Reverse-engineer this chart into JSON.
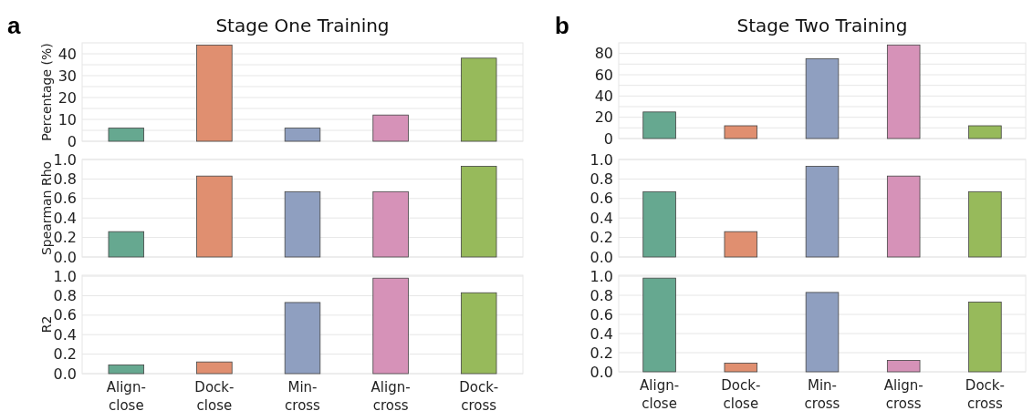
{
  "chart_data": [
    {
      "type": "bar",
      "title": "Stage One Training",
      "annotations": [
        "a"
      ],
      "ylabel": "Percentage (%)",
      "categories": [
        null,
        null,
        null,
        null,
        null
      ],
      "values": [
        6,
        44,
        6,
        12,
        38
      ],
      "colors": [
        "#66a890",
        "#e08f70",
        "#8f9fc0",
        "#d692b8",
        "#97ba5b"
      ],
      "ylim": [
        0,
        45
      ],
      "yticks": [
        0,
        {
          "value": 5,
          "label": null
        },
        10,
        {
          "value": 15,
          "label": null
        },
        20,
        {
          "value": 25,
          "label": null
        },
        30,
        {
          "value": 35,
          "label": null
        },
        40
      ],
      "grid": "y",
      "tick_labels": "y"
    },
    {
      "type": "bar",
      "ylabel": "Spearman Rho",
      "categories": [
        null,
        null,
        null,
        null,
        null
      ],
      "values": [
        0.26,
        0.83,
        0.67,
        0.67,
        0.93
      ],
      "colors": [
        "#66a890",
        "#e08f70",
        "#8f9fc0",
        "#d692b8",
        "#97ba5b"
      ],
      "ylim": [
        0,
        1.0
      ],
      "yticks": [
        {
          "value": 0,
          "label": "0.0"
        },
        0.2,
        0.4,
        0.6,
        0.8,
        {
          "value": 1,
          "label": "1.0"
        }
      ],
      "grid": "y",
      "tick_labels": "y"
    },
    {
      "type": "bar",
      "ylabel": "R2",
      "categories": [
        "Align-close",
        "Dock-close",
        "Min-cross",
        "Align-cross",
        "Dock-cross"
      ],
      "values": [
        0.09,
        0.12,
        0.73,
        0.98,
        0.83
      ],
      "colors": [
        "#66a890",
        "#e08f70",
        "#8f9fc0",
        "#d692b8",
        "#97ba5b"
      ],
      "ylim": [
        0,
        1.01
      ],
      "yticks": [
        {
          "value": 0,
          "label": "0.0"
        },
        0.2,
        0.4,
        0.6,
        0.8,
        {
          "value": 1,
          "label": "1.0"
        }
      ],
      "grid": "y"
    },
    {
      "type": "bar",
      "title": "Stage Two Training",
      "annotations": [
        "b"
      ],
      "categories": [
        null,
        null,
        null,
        null,
        null
      ],
      "values": [
        25,
        12,
        75,
        88,
        12
      ],
      "colors": [
        "#66a890",
        "#e08f70",
        "#8f9fc0",
        "#d692b8",
        "#97ba5b"
      ],
      "ylim": [
        0,
        90
      ],
      "yticks": [
        0,
        {
          "value": 10,
          "label": null
        },
        20,
        {
          "value": 30,
          "label": null
        },
        40,
        {
          "value": 50,
          "label": null
        },
        60,
        {
          "value": 70,
          "label": null
        },
        80
      ],
      "grid": "y",
      "tick_labels": "y"
    },
    {
      "type": "bar",
      "categories": [
        null,
        null,
        null,
        null,
        null
      ],
      "values": [
        0.67,
        0.26,
        0.93,
        0.83,
        0.67
      ],
      "colors": [
        "#66a890",
        "#e08f70",
        "#8f9fc0",
        "#d692b8",
        "#97ba5b"
      ],
      "ylim": [
        0,
        1.0
      ],
      "yticks": [
        {
          "value": 0,
          "label": "0.0"
        },
        0.2,
        0.4,
        0.6,
        0.8,
        {
          "value": 1,
          "label": "1.0"
        }
      ],
      "grid": "y",
      "tick_labels": "y"
    },
    {
      "type": "bar",
      "categories": [
        "Align-close",
        "Dock-close",
        "Min-cross",
        "Align-cross",
        "Dock-cross"
      ],
      "values": [
        0.98,
        0.09,
        0.83,
        0.12,
        0.73
      ],
      "colors": [
        "#66a890",
        "#e08f70",
        "#8f9fc0",
        "#d692b8",
        "#97ba5b"
      ],
      "ylim": [
        0,
        1.01
      ],
      "yticks": [
        {
          "value": 0,
          "label": "0.0"
        },
        0.2,
        0.4,
        0.6,
        0.8,
        {
          "value": 1,
          "label": "1.0"
        }
      ],
      "grid": "y"
    }
  ]
}
